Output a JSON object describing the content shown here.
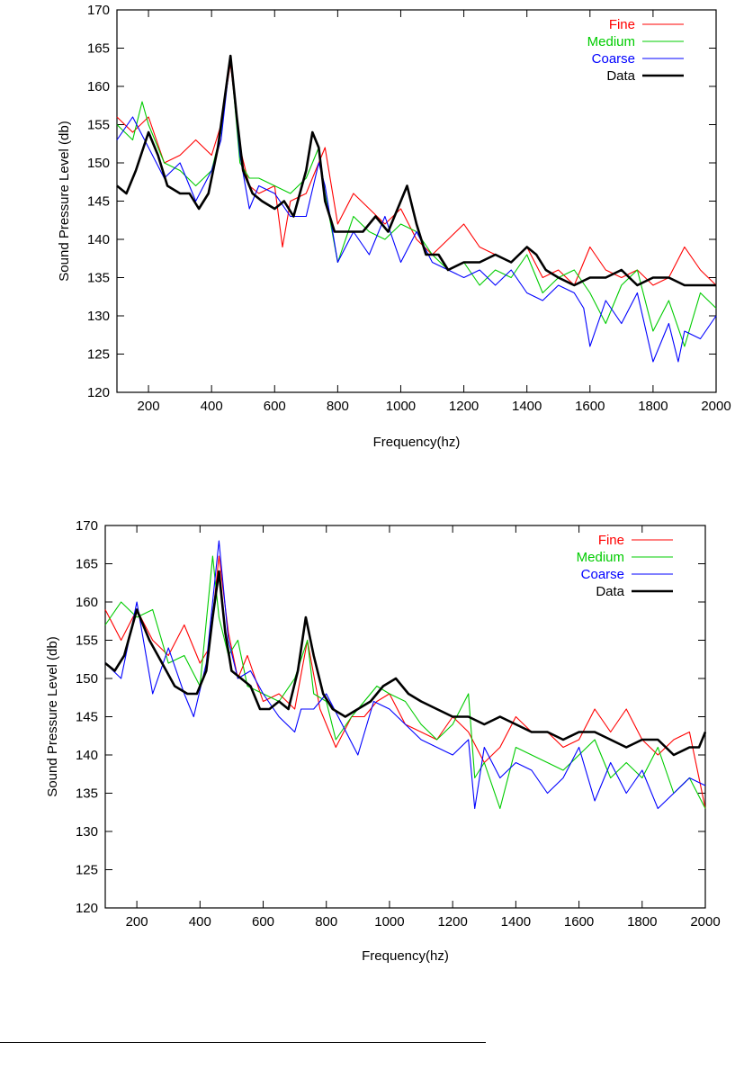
{
  "chart_data": [
    {
      "type": "line",
      "title": "",
      "xlabel": "Frequency(hz)",
      "ylabel": "Sound Pressure Level (db)",
      "xlim": [
        100,
        2000
      ],
      "ylim": [
        120,
        170
      ],
      "xticks": [
        200,
        400,
        600,
        800,
        1000,
        1200,
        1400,
        1600,
        1800,
        2000
      ],
      "yticks": [
        120,
        125,
        130,
        135,
        140,
        145,
        150,
        155,
        160,
        165,
        170
      ],
      "grid": false,
      "legend_position": "top-right",
      "series": [
        {
          "name": "Fine",
          "color": "#ff0000",
          "x": [
            100,
            150,
            200,
            250,
            300,
            350,
            400,
            430,
            460,
            490,
            520,
            550,
            600,
            625,
            650,
            700,
            730,
            760,
            800,
            850,
            900,
            950,
            1000,
            1050,
            1100,
            1150,
            1200,
            1250,
            1300,
            1350,
            1400,
            1450,
            1500,
            1550,
            1600,
            1650,
            1700,
            1750,
            1800,
            1850,
            1900,
            1950,
            2000
          ],
          "y": [
            156,
            154,
            156,
            150,
            151,
            153,
            151,
            155,
            163,
            152,
            147,
            146,
            147,
            139,
            145,
            146,
            149,
            152,
            142,
            146,
            144,
            142,
            144,
            140,
            138,
            140,
            142,
            139,
            138,
            137,
            139,
            135,
            136,
            134,
            139,
            136,
            135,
            136,
            134,
            135,
            139,
            136,
            134
          ]
        },
        {
          "name": "Medium",
          "color": "#00cc00",
          "x": [
            100,
            150,
            180,
            200,
            250,
            300,
            350,
            400,
            430,
            460,
            490,
            520,
            550,
            600,
            650,
            700,
            740,
            760,
            800,
            850,
            900,
            950,
            1000,
            1050,
            1100,
            1150,
            1200,
            1250,
            1300,
            1350,
            1400,
            1450,
            1500,
            1550,
            1600,
            1650,
            1700,
            1750,
            1800,
            1850,
            1900,
            1950,
            2000
          ],
          "y": [
            155,
            153,
            158,
            155,
            150,
            149,
            147,
            149,
            154,
            164,
            150,
            148,
            148,
            147,
            146,
            148,
            152,
            146,
            137,
            143,
            141,
            140,
            142,
            141,
            138,
            136,
            137,
            134,
            136,
            135,
            138,
            133,
            135,
            136,
            133,
            129,
            134,
            136,
            128,
            132,
            126,
            133,
            131
          ]
        },
        {
          "name": "Coarse",
          "color": "#0000ff",
          "x": [
            100,
            150,
            200,
            250,
            300,
            350,
            400,
            430,
            460,
            490,
            520,
            550,
            600,
            650,
            700,
            740,
            760,
            800,
            850,
            900,
            950,
            1000,
            1050,
            1100,
            1150,
            1200,
            1250,
            1300,
            1350,
            1400,
            1450,
            1500,
            1550,
            1580,
            1600,
            1650,
            1700,
            1750,
            1800,
            1850,
            1880,
            1900,
            1950,
            2000
          ],
          "y": [
            153,
            156,
            152,
            148,
            150,
            145,
            149,
            153,
            164,
            151,
            144,
            147,
            146,
            143,
            143,
            150,
            147,
            137,
            141,
            138,
            143,
            137,
            141,
            137,
            136,
            135,
            136,
            134,
            136,
            133,
            132,
            134,
            133,
            131,
            126,
            132,
            129,
            133,
            124,
            129,
            124,
            128,
            127,
            130
          ]
        },
        {
          "name": "Data",
          "color": "#000000",
          "x": [
            100,
            130,
            160,
            200,
            230,
            260,
            300,
            330,
            360,
            390,
            420,
            440,
            460,
            480,
            500,
            530,
            560,
            600,
            630,
            660,
            700,
            720,
            740,
            760,
            790,
            820,
            850,
            880,
            920,
            960,
            1000,
            1020,
            1050,
            1080,
            1120,
            1150,
            1200,
            1250,
            1300,
            1350,
            1400,
            1430,
            1460,
            1500,
            1550,
            1600,
            1650,
            1700,
            1750,
            1800,
            1850,
            1900,
            1950,
            2000
          ],
          "y": [
            147,
            146,
            149,
            154,
            151,
            147,
            146,
            146,
            144,
            146,
            152,
            158,
            164,
            156,
            149,
            146,
            145,
            144,
            145,
            143,
            149,
            154,
            152,
            145,
            141,
            141,
            141,
            141,
            143,
            141,
            145,
            147,
            142,
            138,
            138,
            136,
            137,
            137,
            138,
            137,
            139,
            138,
            136,
            135,
            134,
            135,
            135,
            136,
            134,
            135,
            135,
            134,
            134,
            134
          ]
        }
      ]
    },
    {
      "type": "line",
      "title": "",
      "xlabel": "Frequency(hz)",
      "ylabel": "Sound Pressure Level (db)",
      "xlim": [
        100,
        2000
      ],
      "ylim": [
        120,
        170
      ],
      "xticks": [
        200,
        400,
        600,
        800,
        1000,
        1200,
        1400,
        1600,
        1800,
        2000
      ],
      "yticks": [
        120,
        125,
        130,
        135,
        140,
        145,
        150,
        155,
        160,
        165,
        170
      ],
      "grid": false,
      "legend_position": "top-right",
      "series": [
        {
          "name": "Fine",
          "color": "#ff0000",
          "x": [
            100,
            150,
            200,
            250,
            300,
            350,
            400,
            430,
            460,
            490,
            520,
            550,
            600,
            650,
            700,
            740,
            780,
            830,
            880,
            920,
            960,
            1000,
            1050,
            1100,
            1150,
            1200,
            1250,
            1300,
            1350,
            1400,
            1450,
            1500,
            1550,
            1600,
            1650,
            1700,
            1750,
            1800,
            1850,
            1900,
            1950,
            2000
          ],
          "y": [
            159,
            155,
            159,
            155,
            153,
            157,
            152,
            154,
            166,
            156,
            150,
            153,
            147,
            148,
            146,
            155,
            146,
            141,
            145,
            145,
            147,
            148,
            144,
            143,
            142,
            145,
            143,
            139,
            141,
            145,
            143,
            143,
            141,
            142,
            146,
            143,
            146,
            142,
            140,
            142,
            143,
            133
          ]
        },
        {
          "name": "Medium",
          "color": "#00cc00",
          "x": [
            100,
            150,
            200,
            250,
            300,
            350,
            400,
            440,
            460,
            490,
            520,
            550,
            600,
            650,
            700,
            740,
            760,
            800,
            830,
            880,
            920,
            960,
            1000,
            1050,
            1100,
            1150,
            1200,
            1250,
            1270,
            1300,
            1350,
            1400,
            1450,
            1500,
            1550,
            1600,
            1650,
            1700,
            1750,
            1800,
            1850,
            1900,
            1950,
            2000
          ],
          "y": [
            157,
            160,
            158,
            159,
            152,
            153,
            149,
            166,
            158,
            153,
            155,
            149,
            148,
            147,
            150,
            155,
            148,
            147,
            142,
            145,
            147,
            149,
            148,
            147,
            144,
            142,
            144,
            148,
            137,
            139,
            133,
            141,
            140,
            139,
            138,
            140,
            142,
            137,
            139,
            137,
            141,
            135,
            137,
            133
          ]
        },
        {
          "name": "Coarse",
          "color": "#0000ff",
          "x": [
            100,
            150,
            200,
            250,
            300,
            350,
            380,
            420,
            460,
            490,
            520,
            560,
            600,
            650,
            700,
            720,
            760,
            800,
            850,
            900,
            950,
            1000,
            1050,
            1100,
            1150,
            1200,
            1250,
            1270,
            1300,
            1350,
            1400,
            1450,
            1500,
            1550,
            1600,
            1650,
            1700,
            1750,
            1800,
            1850,
            1900,
            1950,
            2000
          ],
          "y": [
            152,
            150,
            160,
            148,
            154,
            148,
            145,
            152,
            168,
            155,
            150,
            151,
            148,
            145,
            143,
            146,
            146,
            148,
            144,
            140,
            147,
            146,
            144,
            142,
            141,
            140,
            142,
            133,
            141,
            137,
            139,
            138,
            135,
            137,
            141,
            134,
            139,
            135,
            138,
            133,
            135,
            137,
            136
          ]
        },
        {
          "name": "Data",
          "color": "#000000",
          "x": [
            100,
            130,
            160,
            200,
            240,
            280,
            320,
            360,
            390,
            420,
            440,
            460,
            480,
            500,
            530,
            560,
            590,
            620,
            650,
            680,
            710,
            735,
            760,
            790,
            820,
            860,
            900,
            940,
            980,
            1020,
            1060,
            1100,
            1150,
            1200,
            1250,
            1300,
            1350,
            1400,
            1450,
            1500,
            1550,
            1600,
            1650,
            1700,
            1750,
            1800,
            1850,
            1900,
            1950,
            1980,
            2000
          ],
          "y": [
            152,
            151,
            153,
            159,
            155,
            152,
            149,
            148,
            148,
            151,
            158,
            164,
            156,
            151,
            150,
            149,
            146,
            146,
            147,
            146,
            151,
            158,
            153,
            148,
            146,
            145,
            146,
            147,
            149,
            150,
            148,
            147,
            146,
            145,
            145,
            144,
            145,
            144,
            143,
            143,
            142,
            143,
            143,
            142,
            141,
            142,
            142,
            140,
            141,
            141,
            143
          ]
        }
      ]
    }
  ]
}
